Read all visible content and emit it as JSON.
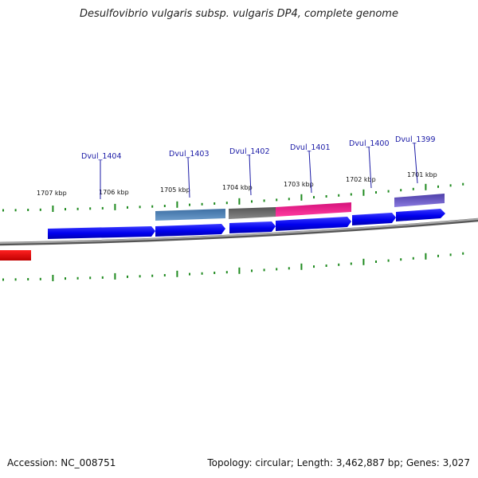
{
  "title": "Desulfovibrio vulgaris subsp. vulgaris DP4, complete genome",
  "footer": {
    "accession": "Accession: NC_008751",
    "topology": "Topology: circular; Length: 3,462,887 bp; Genes: 3,027"
  },
  "colors": {
    "backbone": "#8a8a8a",
    "cds": "#0000ee",
    "ticks": "#1f8a1f",
    "labels": "#1a1aa6",
    "rna_red": "#ee0000",
    "steelblue": "#4a7db3",
    "grey": "#6a6a6a",
    "pink": "#ee1a8c",
    "slate": "#6a5acd"
  },
  "kbp_labels": [
    "1707 kbp",
    "1706 kbp",
    "1705 kbp",
    "1704 kbp",
    "1703 kbp",
    "1702 kbp",
    "1701 kbp"
  ],
  "gene_labels": [
    "Dvul_1404",
    "Dvul_1403",
    "Dvul_1402",
    "Dvul_1401",
    "Dvul_1400",
    "Dvul_1399"
  ]
}
